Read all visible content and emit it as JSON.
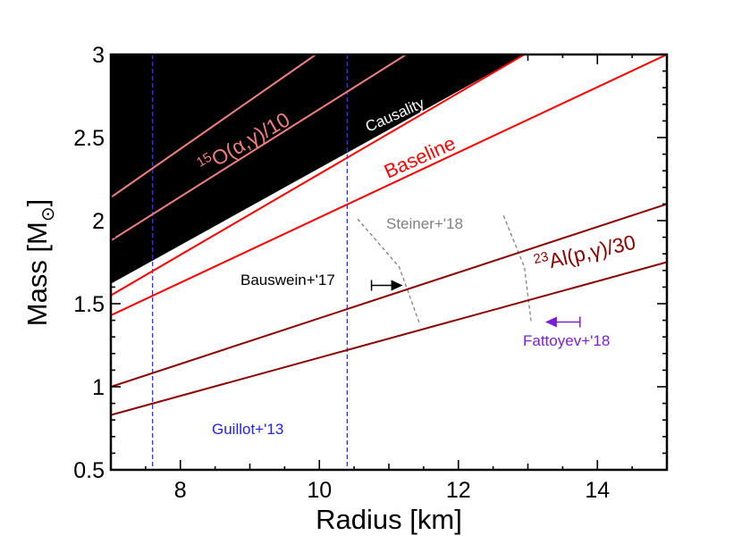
{
  "chart_data": {
    "type": "line",
    "title": "",
    "xlabel": "Radius [km]",
    "ylabel": "Mass [M",
    "ylabel_subscript": "⊙",
    "ylabel_close": "]",
    "xlim": [
      7,
      15
    ],
    "ylim": [
      0.5,
      3
    ],
    "x_ticks": [
      8,
      10,
      12,
      14
    ],
    "y_ticks": [
      0.5,
      1,
      1.5,
      2,
      2.5,
      3
    ],
    "y_tick_labels": [
      "0.5",
      "1",
      "1.5",
      "2",
      "2.5",
      "3"
    ],
    "grid": false,
    "causality_region": {
      "label": "Causality",
      "boundary": [
        [
          7,
          1.62
        ],
        [
          12.95,
          3
        ]
      ],
      "color": "#000000"
    },
    "series": [
      {
        "name": "O15-lower",
        "color": "#f08080",
        "x": [
          7,
          9.95
        ],
        "y": [
          2.14,
          3.0
        ]
      },
      {
        "name": "O15-upper",
        "color": "#f08080",
        "x": [
          7,
          11.25
        ],
        "y": [
          1.88,
          3.0
        ]
      },
      {
        "name": "Baseline-upper",
        "color": "#ff0000",
        "x": [
          7,
          12.95
        ],
        "y": [
          1.55,
          3.0
        ]
      },
      {
        "name": "Baseline-lower",
        "color": "#ff0000",
        "x": [
          7,
          15
        ],
        "y": [
          1.43,
          3.0
        ]
      },
      {
        "name": "Al23-upper",
        "color": "#8b0000",
        "x": [
          7,
          15
        ],
        "y": [
          1.0,
          2.1
        ]
      },
      {
        "name": "Al23-lower",
        "color": "#8b0000",
        "x": [
          7,
          15
        ],
        "y": [
          0.83,
          1.75
        ]
      }
    ],
    "vertical_lines": [
      {
        "x": 7.6,
        "color": "#3333ff"
      },
      {
        "x": 10.4,
        "color": "#3333ff"
      }
    ],
    "steiner_curves": [
      {
        "color": "#808080",
        "points": [
          [
            10.55,
            2.01
          ],
          [
            11.15,
            1.72
          ],
          [
            11.45,
            1.37
          ]
        ]
      },
      {
        "color": "#808080",
        "points": [
          [
            12.65,
            2.03
          ],
          [
            12.95,
            1.72
          ],
          [
            13.05,
            1.38
          ]
        ]
      }
    ],
    "arrows": [
      {
        "label": "Bauswein+'17",
        "color": "#000000",
        "bar_x": 10.75,
        "tip_x": 11.2,
        "y": 1.61
      },
      {
        "label": "Fattoyev+'18",
        "color": "#7a1fd6",
        "bar_x": 13.75,
        "tip_x": 13.25,
        "y": 1.39
      }
    ],
    "annotations": [
      {
        "key": "o15",
        "sup": "15",
        "text": "O(α,γ)/10",
        "color": "#f08080"
      },
      {
        "key": "causality",
        "text": "Causality",
        "color": "#ffffff"
      },
      {
        "key": "baseline",
        "text": "Baseline",
        "color": "#ff0000"
      },
      {
        "key": "al23",
        "sup": "23",
        "text": "Al(p,γ)/30",
        "color": "#8b0000"
      },
      {
        "key": "steiner",
        "text": "Steiner+'18",
        "color": "#808080"
      },
      {
        "key": "bauswein",
        "text": "Bauswein+'17",
        "color": "#000000"
      },
      {
        "key": "fattoyev",
        "text": "Fattoyev+'18",
        "color": "#7a1fd6"
      },
      {
        "key": "guillot",
        "text": "Guillot+'13",
        "color": "#2222dd"
      }
    ]
  }
}
